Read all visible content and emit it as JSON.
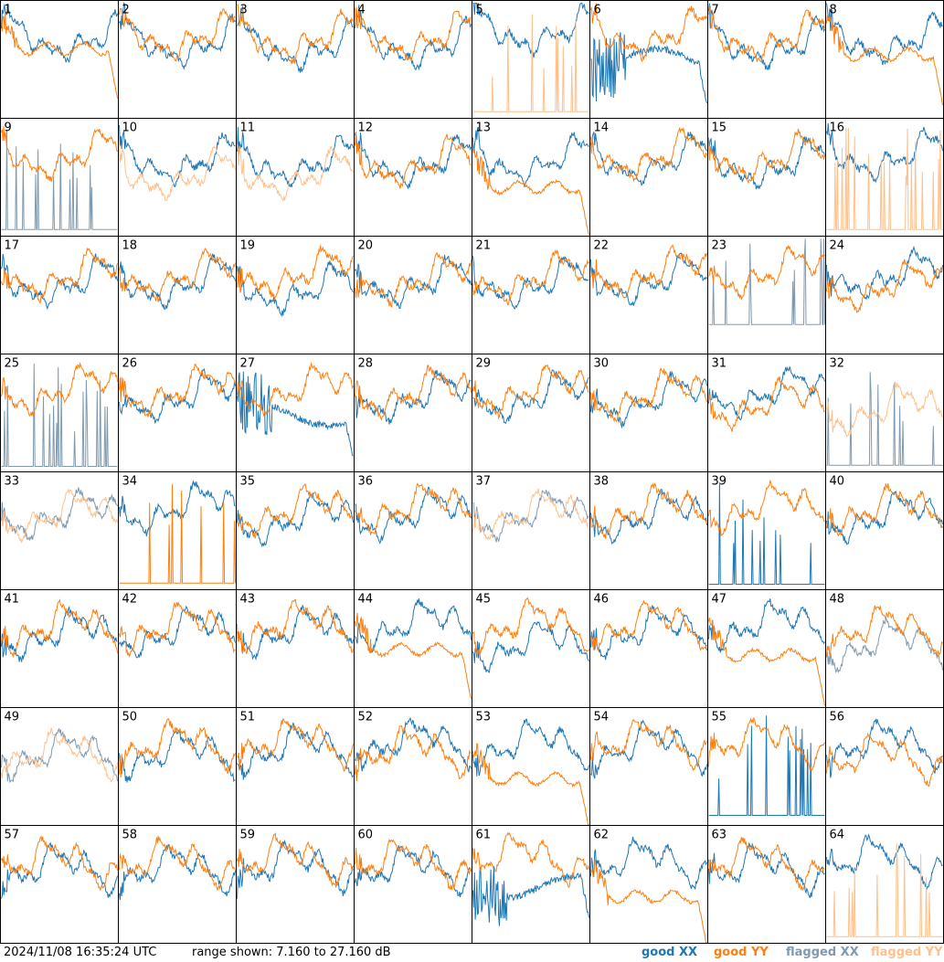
{
  "footer": {
    "timestamp": "2024/11/08 16:35:24 UTC",
    "range": "range shown: 7.160 to 27.160 dB",
    "legend": {
      "good_xx": "good XX",
      "good_yy": "good YY",
      "flagged_xx": "flagged XX",
      "flagged_yy": "flagged YY"
    }
  },
  "colors": {
    "good_xx": "#1f77b4",
    "good_yy": "#ff7f0e",
    "flagged_xx": "#7f9ab0",
    "flagged_yy": "#ffc08a"
  },
  "chart_data": {
    "type": "line",
    "grid": "8x8 small multiples",
    "ylim_db": [
      7.16,
      27.16
    ],
    "panels": [
      {
        "id": "1",
        "xx": {
          "status": "good",
          "shape": "normal",
          "level": 0.72
        },
        "yy": {
          "status": "good",
          "shape": "rolloff",
          "level": 0.6
        }
      },
      {
        "id": "2",
        "xx": {
          "status": "good",
          "shape": "normal",
          "level": 0.68
        },
        "yy": {
          "status": "good",
          "shape": "normal",
          "level": 0.74
        }
      },
      {
        "id": "3",
        "xx": {
          "status": "good",
          "shape": "normal",
          "level": 0.65
        },
        "yy": {
          "status": "good",
          "shape": "normal",
          "level": 0.72
        }
      },
      {
        "id": "4",
        "xx": {
          "status": "good",
          "shape": "normal",
          "level": 0.66
        },
        "yy": {
          "status": "good",
          "shape": "normal",
          "level": 0.73
        }
      },
      {
        "id": "5",
        "xx": {
          "status": "good",
          "shape": "normal",
          "level": 0.78
        },
        "yy": {
          "status": "flagged",
          "shape": "spikes",
          "level": 0.05
        }
      },
      {
        "id": "6",
        "xx": {
          "status": "good",
          "shape": "noisy_drop",
          "level": 0.5
        },
        "yy": {
          "status": "good",
          "shape": "normal",
          "level": 0.75
        }
      },
      {
        "id": "7",
        "xx": {
          "status": "good",
          "shape": "normal",
          "level": 0.66
        },
        "yy": {
          "status": "good",
          "shape": "normal",
          "level": 0.72
        }
      },
      {
        "id": "8",
        "xx": {
          "status": "good",
          "shape": "normal",
          "level": 0.7
        },
        "yy": {
          "status": "good",
          "shape": "rolloff",
          "level": 0.55
        }
      },
      {
        "id": "9",
        "xx": {
          "status": "flagged",
          "shape": "spikes",
          "level": 0.05
        },
        "yy": {
          "status": "good",
          "shape": "normal",
          "level": 0.72
        }
      },
      {
        "id": "10",
        "xx": {
          "status": "good",
          "shape": "normal",
          "level": 0.68
        },
        "yy": {
          "status": "flagged",
          "shape": "normal",
          "level": 0.55
        }
      },
      {
        "id": "11",
        "xx": {
          "status": "good",
          "shape": "normal",
          "level": 0.66
        },
        "yy": {
          "status": "flagged",
          "shape": "normal",
          "level": 0.55
        }
      },
      {
        "id": "12",
        "xx": {
          "status": "good",
          "shape": "normal",
          "level": 0.66
        },
        "yy": {
          "status": "good",
          "shape": "normal",
          "level": 0.66
        }
      },
      {
        "id": "13",
        "xx": {
          "status": "good",
          "shape": "normal",
          "level": 0.68
        },
        "yy": {
          "status": "good",
          "shape": "rolloff",
          "level": 0.42
        }
      },
      {
        "id": "14",
        "xx": {
          "status": "good",
          "shape": "normal",
          "level": 0.68
        },
        "yy": {
          "status": "good",
          "shape": "normal",
          "level": 0.72
        }
      },
      {
        "id": "15",
        "xx": {
          "status": "good",
          "shape": "normal",
          "level": 0.64
        },
        "yy": {
          "status": "good",
          "shape": "normal",
          "level": 0.7
        }
      },
      {
        "id": "16",
        "xx": {
          "status": "good",
          "shape": "normal",
          "level": 0.72
        },
        "yy": {
          "status": "flagged",
          "shape": "spikes",
          "level": 0.05
        }
      },
      {
        "id": "17",
        "xx": {
          "status": "good",
          "shape": "normal",
          "level": 0.64
        },
        "yy": {
          "status": "good",
          "shape": "normal",
          "level": 0.7
        }
      },
      {
        "id": "18",
        "xx": {
          "status": "good",
          "shape": "normal",
          "level": 0.64
        },
        "yy": {
          "status": "good",
          "shape": "normal",
          "level": 0.7
        }
      },
      {
        "id": "19",
        "xx": {
          "status": "good",
          "shape": "normal",
          "level": 0.58
        },
        "yy": {
          "status": "good",
          "shape": "normal",
          "level": 0.72
        }
      },
      {
        "id": "20",
        "xx": {
          "status": "good",
          "shape": "normal",
          "level": 0.64
        },
        "yy": {
          "status": "good",
          "shape": "normal",
          "level": 0.66
        }
      },
      {
        "id": "21",
        "xx": {
          "status": "good",
          "shape": "normal",
          "level": 0.64
        },
        "yy": {
          "status": "good",
          "shape": "normal",
          "level": 0.68
        }
      },
      {
        "id": "22",
        "xx": {
          "status": "good",
          "shape": "normal",
          "level": 0.66
        },
        "yy": {
          "status": "good",
          "shape": "normal",
          "level": 0.72
        }
      },
      {
        "id": "23",
        "xx": {
          "status": "flagged",
          "shape": "spikes",
          "level": 0.25
        },
        "yy": {
          "status": "good",
          "shape": "normal",
          "level": 0.72
        }
      },
      {
        "id": "24",
        "xx": {
          "status": "good",
          "shape": "normal",
          "level": 0.7
        },
        "yy": {
          "status": "good",
          "shape": "normal",
          "level": 0.6
        }
      },
      {
        "id": "25",
        "xx": {
          "status": "flagged",
          "shape": "spikes",
          "level": 0.04
        },
        "yy": {
          "status": "good",
          "shape": "normal",
          "level": 0.72
        }
      },
      {
        "id": "26",
        "xx": {
          "status": "good",
          "shape": "normal",
          "level": 0.66
        },
        "yy": {
          "status": "good",
          "shape": "normal",
          "level": 0.72
        }
      },
      {
        "id": "27",
        "xx": {
          "status": "good",
          "shape": "noisy_drop",
          "level": 0.5
        },
        "yy": {
          "status": "good",
          "shape": "normal",
          "level": 0.72
        }
      },
      {
        "id": "28",
        "xx": {
          "status": "good",
          "shape": "normal",
          "level": 0.66
        },
        "yy": {
          "status": "good",
          "shape": "normal",
          "level": 0.7
        }
      },
      {
        "id": "29",
        "xx": {
          "status": "good",
          "shape": "normal",
          "level": 0.66
        },
        "yy": {
          "status": "good",
          "shape": "normal",
          "level": 0.72
        }
      },
      {
        "id": "30",
        "xx": {
          "status": "good",
          "shape": "normal",
          "level": 0.64
        },
        "yy": {
          "status": "good",
          "shape": "normal",
          "level": 0.68
        }
      },
      {
        "id": "31",
        "xx": {
          "status": "good",
          "shape": "normal",
          "level": 0.7
        },
        "yy": {
          "status": "good",
          "shape": "normal",
          "level": 0.6
        }
      },
      {
        "id": "32",
        "xx": {
          "status": "flagged",
          "shape": "spikes",
          "level": 0.05
        },
        "yy": {
          "status": "flagged",
          "shape": "normal",
          "level": 0.55
        }
      },
      {
        "id": "33",
        "xx": {
          "status": "flagged",
          "shape": "normal",
          "level": 0.66
        },
        "yy": {
          "status": "flagged",
          "shape": "normal",
          "level": 0.66
        }
      },
      {
        "id": "34",
        "xx": {
          "status": "good",
          "shape": "normal",
          "level": 0.72
        },
        "yy": {
          "status": "good",
          "shape": "spikes",
          "level": 0.05
        }
      },
      {
        "id": "35",
        "xx": {
          "status": "good",
          "shape": "normal",
          "level": 0.62
        },
        "yy": {
          "status": "good",
          "shape": "normal",
          "level": 0.7
        }
      },
      {
        "id": "36",
        "xx": {
          "status": "good",
          "shape": "normal",
          "level": 0.66
        },
        "yy": {
          "status": "good",
          "shape": "normal",
          "level": 0.72
        }
      },
      {
        "id": "37",
        "xx": {
          "status": "flagged",
          "shape": "normal",
          "level": 0.66
        },
        "yy": {
          "status": "flagged",
          "shape": "normal",
          "level": 0.66
        }
      },
      {
        "id": "38",
        "xx": {
          "status": "good",
          "shape": "normal",
          "level": 0.64
        },
        "yy": {
          "status": "good",
          "shape": "normal",
          "level": 0.7
        }
      },
      {
        "id": "39",
        "xx": {
          "status": "good",
          "shape": "spikes",
          "level": 0.04
        },
        "yy": {
          "status": "good",
          "shape": "normal",
          "level": 0.72
        }
      },
      {
        "id": "40",
        "xx": {
          "status": "good",
          "shape": "normal",
          "level": 0.64
        },
        "yy": {
          "status": "good",
          "shape": "normal",
          "level": 0.7
        }
      },
      {
        "id": "41",
        "xx": {
          "status": "good",
          "shape": "normal",
          "level": 0.64
        },
        "yy": {
          "status": "good",
          "shape": "normal",
          "level": 0.7
        }
      },
      {
        "id": "42",
        "xx": {
          "status": "good",
          "shape": "normal",
          "level": 0.66
        },
        "yy": {
          "status": "good",
          "shape": "normal",
          "level": 0.7
        }
      },
      {
        "id": "43",
        "xx": {
          "status": "good",
          "shape": "normal",
          "level": 0.66
        },
        "yy": {
          "status": "good",
          "shape": "normal",
          "level": 0.72
        }
      },
      {
        "id": "44",
        "xx": {
          "status": "good",
          "shape": "normal",
          "level": 0.72
        },
        "yy": {
          "status": "good",
          "shape": "rolloff",
          "level": 0.5
        }
      },
      {
        "id": "45",
        "xx": {
          "status": "good",
          "shape": "normal",
          "level": 0.55
        },
        "yy": {
          "status": "good",
          "shape": "normal",
          "level": 0.72
        }
      },
      {
        "id": "46",
        "xx": {
          "status": "good",
          "shape": "normal",
          "level": 0.66
        },
        "yy": {
          "status": "good",
          "shape": "normal",
          "level": 0.72
        }
      },
      {
        "id": "47",
        "xx": {
          "status": "good",
          "shape": "normal",
          "level": 0.72
        },
        "yy": {
          "status": "good",
          "shape": "rolloff",
          "level": 0.45
        }
      },
      {
        "id": "48",
        "xx": {
          "status": "flagged",
          "shape": "normal",
          "level": 0.55
        },
        "yy": {
          "status": "good",
          "shape": "normal",
          "level": 0.68
        }
      },
      {
        "id": "49",
        "xx": {
          "status": "flagged",
          "shape": "normal",
          "level": 0.62
        },
        "yy": {
          "status": "flagged",
          "shape": "normal",
          "level": 0.62
        }
      },
      {
        "id": "50",
        "xx": {
          "status": "good",
          "shape": "normal",
          "level": 0.62
        },
        "yy": {
          "status": "good",
          "shape": "normal",
          "level": 0.7
        }
      },
      {
        "id": "51",
        "xx": {
          "status": "good",
          "shape": "normal",
          "level": 0.66
        },
        "yy": {
          "status": "good",
          "shape": "normal",
          "level": 0.72
        }
      },
      {
        "id": "52",
        "xx": {
          "status": "good",
          "shape": "normal",
          "level": 0.72
        },
        "yy": {
          "status": "good",
          "shape": "normal",
          "level": 0.64
        }
      },
      {
        "id": "53",
        "xx": {
          "status": "good",
          "shape": "normal",
          "level": 0.7
        },
        "yy": {
          "status": "good",
          "shape": "rolloff",
          "level": 0.4
        }
      },
      {
        "id": "54",
        "xx": {
          "status": "good",
          "shape": "normal",
          "level": 0.68
        },
        "yy": {
          "status": "good",
          "shape": "normal",
          "level": 0.72
        }
      },
      {
        "id": "55",
        "xx": {
          "status": "good",
          "shape": "spikes",
          "level": 0.08
        },
        "yy": {
          "status": "good",
          "shape": "normal",
          "level": 0.72
        }
      },
      {
        "id": "56",
        "xx": {
          "status": "good",
          "shape": "normal",
          "level": 0.7
        },
        "yy": {
          "status": "good",
          "shape": "normal",
          "level": 0.58
        }
      },
      {
        "id": "57",
        "xx": {
          "status": "good",
          "shape": "normal",
          "level": 0.64
        },
        "yy": {
          "status": "good",
          "shape": "normal",
          "level": 0.7
        }
      },
      {
        "id": "58",
        "xx": {
          "status": "good",
          "shape": "normal",
          "level": 0.64
        },
        "yy": {
          "status": "good",
          "shape": "normal",
          "level": 0.7
        }
      },
      {
        "id": "59",
        "xx": {
          "status": "good",
          "shape": "normal",
          "level": 0.66
        },
        "yy": {
          "status": "good",
          "shape": "normal",
          "level": 0.72
        }
      },
      {
        "id": "60",
        "xx": {
          "status": "good",
          "shape": "normal",
          "level": 0.64
        },
        "yy": {
          "status": "good",
          "shape": "normal",
          "level": 0.7
        }
      },
      {
        "id": "61",
        "xx": {
          "status": "good",
          "shape": "noisy_drop",
          "level": 0.48
        },
        "yy": {
          "status": "good",
          "shape": "normal",
          "level": 0.74
        }
      },
      {
        "id": "62",
        "xx": {
          "status": "good",
          "shape": "normal",
          "level": 0.7
        },
        "yy": {
          "status": "good",
          "shape": "rolloff",
          "level": 0.4
        }
      },
      {
        "id": "63",
        "xx": {
          "status": "good",
          "shape": "normal",
          "level": 0.64
        },
        "yy": {
          "status": "good",
          "shape": "normal",
          "level": 0.7
        }
      },
      {
        "id": "64",
        "xx": {
          "status": "good",
          "shape": "normal",
          "level": 0.72
        },
        "yy": {
          "status": "flagged",
          "shape": "spikes",
          "level": 0.05
        }
      }
    ]
  }
}
